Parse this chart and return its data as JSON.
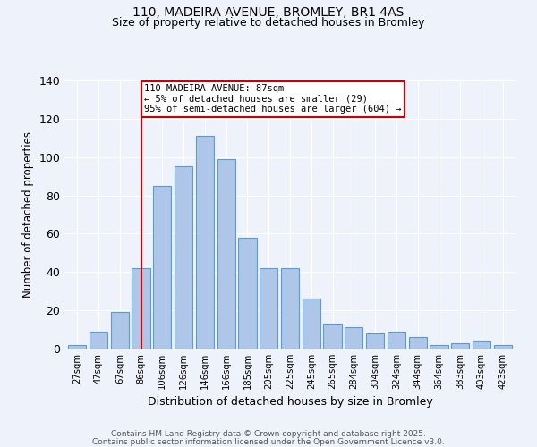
{
  "title1": "110, MADEIRA AVENUE, BROMLEY, BR1 4AS",
  "title2": "Size of property relative to detached houses in Bromley",
  "xlabel": "Distribution of detached houses by size in Bromley",
  "ylabel": "Number of detached properties",
  "bar_labels": [
    "27sqm",
    "47sqm",
    "67sqm",
    "86sqm",
    "106sqm",
    "126sqm",
    "146sqm",
    "166sqm",
    "185sqm",
    "205sqm",
    "225sqm",
    "245sqm",
    "265sqm",
    "284sqm",
    "304sqm",
    "324sqm",
    "344sqm",
    "364sqm",
    "383sqm",
    "403sqm",
    "423sqm"
  ],
  "bar_values": [
    2,
    9,
    19,
    42,
    85,
    95,
    111,
    99,
    58,
    42,
    42,
    26,
    13,
    11,
    8,
    9,
    6,
    2,
    3,
    4,
    2
  ],
  "bar_color": "#aec6e8",
  "bar_edge_color": "#5b9bd5",
  "property_line_x": 3,
  "annotation_text": "110 MADEIRA AVENUE: 87sqm\n← 5% of detached houses are smaller (29)\n95% of semi-detached houses are larger (604) →",
  "vline_color": "#cc0000",
  "annotation_box_edge": "#cc0000",
  "ylim": [
    0,
    140
  ],
  "yticks": [
    0,
    20,
    40,
    60,
    80,
    100,
    120,
    140
  ],
  "footer1": "Contains HM Land Registry data © Crown copyright and database right 2025.",
  "footer2": "Contains public sector information licensed under the Open Government Licence v3.0.",
  "bg_color": "#eef2fb"
}
